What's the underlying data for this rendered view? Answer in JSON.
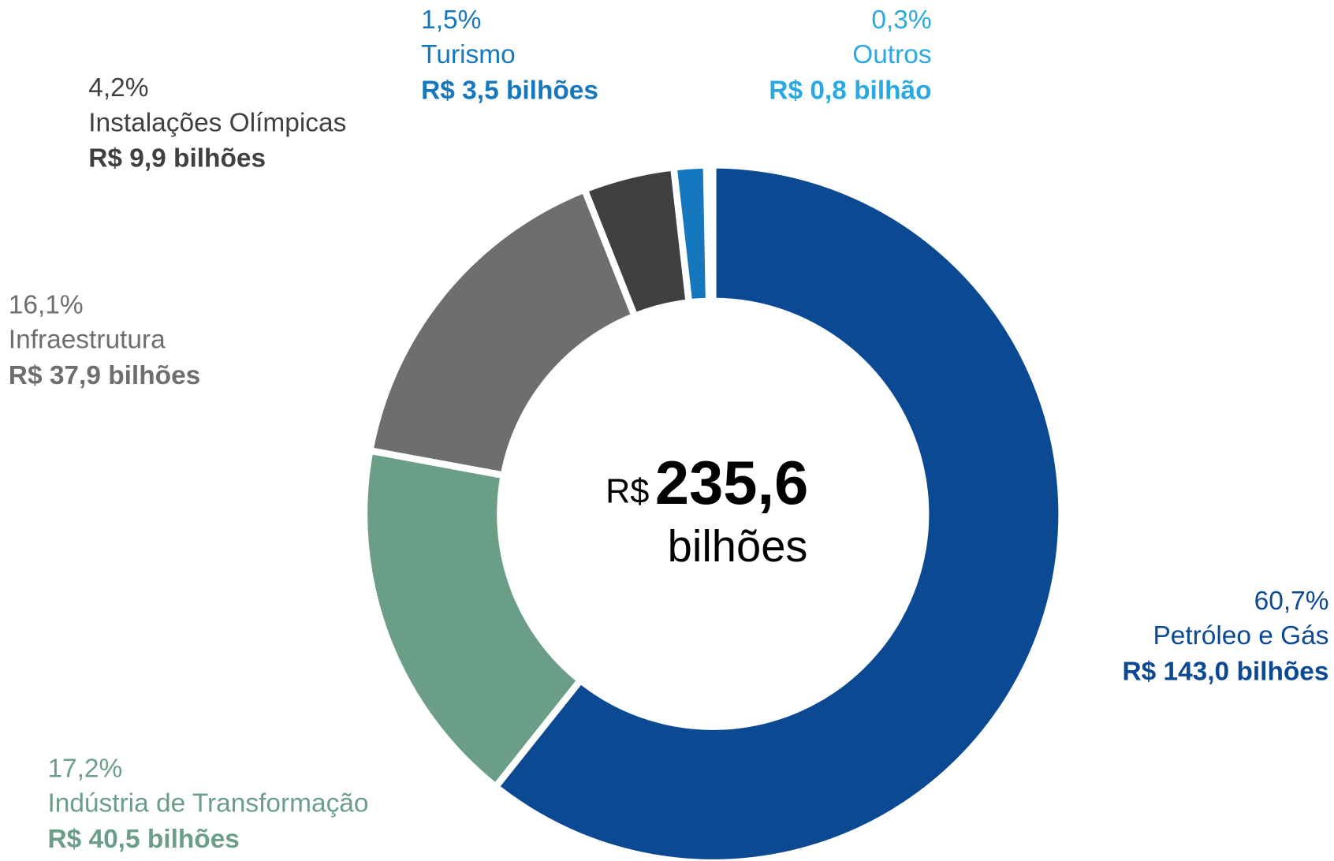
{
  "chart_data": {
    "type": "donut",
    "categories": [
      "Petróleo e Gás",
      "Indústria de Transformação",
      "Infraestrutura",
      "Instalações Olímpicas",
      "Turismo",
      "Outros"
    ],
    "values": [
      60.7,
      17.2,
      16.1,
      4.2,
      1.5,
      0.3
    ],
    "value_labels": [
      "60,7%",
      "17,2%",
      "16,1%",
      "4,2%",
      "1,5%",
      "0,3%"
    ],
    "amount_labels": [
      "R$ 143,0 bilhões",
      "R$ 40,5 bilhões",
      "R$ 37,9 bilhões",
      "R$ 9,9 bilhões",
      "R$ 3,5 bilhões",
      "R$ 0,8 bilhão"
    ],
    "colors": [
      "#0b4a93",
      "#6b9e87",
      "#6d6e70",
      "#404040",
      "#1577bd",
      "#29a9e0"
    ],
    "center_label": {
      "prefix": "R$",
      "value": "235,6",
      "unit": "bilhões"
    }
  }
}
